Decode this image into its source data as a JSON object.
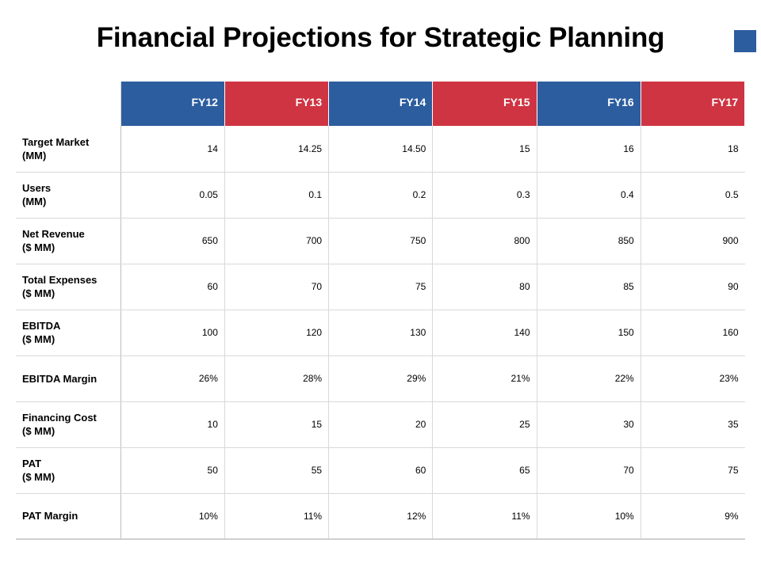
{
  "title": "Financial Projections for Strategic Planning",
  "colors": {
    "blue": "#2c5d9f",
    "red": "#cf3442",
    "accent_square": "#2c5d9f"
  },
  "headers": [
    {
      "label": "FY12",
      "color": "#2c5d9f"
    },
    {
      "label": "FY13",
      "color": "#cf3442"
    },
    {
      "label": "FY14",
      "color": "#2c5d9f"
    },
    {
      "label": "FY15",
      "color": "#cf3442"
    },
    {
      "label": "FY16",
      "color": "#2c5d9f"
    },
    {
      "label": "FY17",
      "color": "#cf3442"
    }
  ],
  "rows": [
    {
      "label": [
        "Target Market",
        "(MM)"
      ],
      "values": [
        "14",
        "14.25",
        "14.50",
        "15",
        "16",
        "18"
      ]
    },
    {
      "label": [
        "Users",
        "(MM)"
      ],
      "values": [
        "0.05",
        "0.1",
        "0.2",
        "0.3",
        "0.4",
        "0.5"
      ]
    },
    {
      "label": [
        "Net Revenue",
        "($ MM)"
      ],
      "values": [
        "650",
        "700",
        "750",
        "800",
        "850",
        "900"
      ]
    },
    {
      "label": [
        "Total Expenses",
        "($ MM)"
      ],
      "values": [
        "60",
        "70",
        "75",
        "80",
        "85",
        "90"
      ]
    },
    {
      "label": [
        "EBITDA",
        "($ MM)"
      ],
      "values": [
        "100",
        "120",
        "130",
        "140",
        "150",
        "160"
      ]
    },
    {
      "label": [
        "EBITDA Margin"
      ],
      "values": [
        "26%",
        "28%",
        "29%",
        "21%",
        "22%",
        "23%"
      ]
    },
    {
      "label": [
        "Financing Cost",
        "($ MM)"
      ],
      "values": [
        "10",
        "15",
        "20",
        "25",
        "30",
        "35"
      ]
    },
    {
      "label": [
        "PAT",
        "($ MM)"
      ],
      "values": [
        "50",
        "55",
        "60",
        "65",
        "70",
        "75"
      ]
    },
    {
      "label": [
        "PAT Margin"
      ],
      "values": [
        "10%",
        "11%",
        "12%",
        "11%",
        "10%",
        "9%"
      ]
    }
  ]
}
